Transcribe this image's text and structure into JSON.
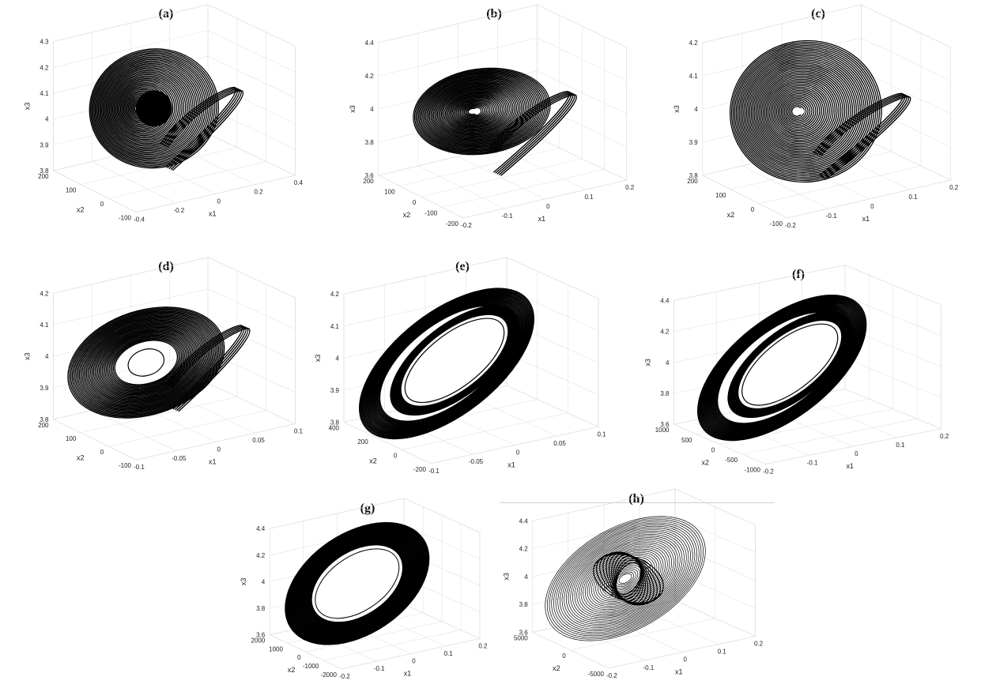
{
  "chart_data": [
    {
      "label": "(a)",
      "type": "line",
      "style": "dense-spiral-disk",
      "x1": {
        "ticks": [
          "-0.4",
          "-0.2",
          "0",
          "0.2",
          "0.4"
        ]
      },
      "x2": {
        "ticks": [
          "-100",
          "0",
          "100",
          "200"
        ]
      },
      "x3": {
        "ticks": [
          "3.8",
          "3.9",
          "4",
          "4.1",
          "4.2",
          "4.3"
        ]
      },
      "xlabel": "x1",
      "ylabel": "x2",
      "zlabel": "x3"
    },
    {
      "label": "(b)",
      "type": "line",
      "style": "dense-spiral-disk",
      "x1": {
        "ticks": [
          "-0.2",
          "-0.1",
          "0",
          "0.1",
          "0.2"
        ]
      },
      "x2": {
        "ticks": [
          "-200",
          "-100",
          "0",
          "100",
          "200"
        ]
      },
      "x3": {
        "ticks": [
          "3.6",
          "3.8",
          "4",
          "4.2",
          "4.4"
        ]
      },
      "xlabel": "x1",
      "ylabel": "x2",
      "zlabel": "x3"
    },
    {
      "label": "(c)",
      "type": "line",
      "style": "dense-spiral-disk",
      "x1": {
        "ticks": [
          "-0.2",
          "-0.1",
          "0",
          "0.1",
          "0.2"
        ]
      },
      "x2": {
        "ticks": [
          "-100",
          "0",
          "100",
          "200"
        ]
      },
      "x3": {
        "ticks": [
          "3.8",
          "3.9",
          "4",
          "4.1",
          "4.2"
        ]
      },
      "xlabel": "x1",
      "ylabel": "x2",
      "zlabel": "x3"
    },
    {
      "label": "(d)",
      "type": "line",
      "style": "annulus",
      "x1": {
        "ticks": [
          "-0.1",
          "-0.05",
          "0",
          "0.05",
          "0.1"
        ]
      },
      "x2": {
        "ticks": [
          "-100",
          "0",
          "100",
          "200"
        ]
      },
      "x3": {
        "ticks": [
          "3.8",
          "3.9",
          "4",
          "4.1",
          "4.2"
        ]
      },
      "xlabel": "x1",
      "ylabel": "x2",
      "zlabel": "x3"
    },
    {
      "label": "(e)",
      "type": "line",
      "style": "double-ring",
      "x1": {
        "ticks": [
          "-0.1",
          "-0.05",
          "0",
          "0.05",
          "0.1"
        ]
      },
      "x2": {
        "ticks": [
          "-200",
          "0",
          "200",
          "400"
        ]
      },
      "x3": {
        "ticks": [
          "3.8",
          "3.9",
          "4",
          "4.1",
          "4.2"
        ]
      },
      "xlabel": "x1",
      "ylabel": "x2",
      "zlabel": "x3"
    },
    {
      "label": "(f)",
      "type": "line",
      "style": "double-ring",
      "x1": {
        "ticks": [
          "-0.2",
          "-0.1",
          "0",
          "0.1",
          "0.2"
        ]
      },
      "x2": {
        "ticks": [
          "-1000",
          "-500",
          "0",
          "500",
          "1000"
        ]
      },
      "x3": {
        "ticks": [
          "3.6",
          "3.8",
          "4",
          "4.2",
          "4.4"
        ]
      },
      "xlabel": "x1",
      "ylabel": "x2",
      "zlabel": "x3"
    },
    {
      "label": "(g)",
      "type": "line",
      "style": "thick-ring",
      "x1": {
        "ticks": [
          "-0.2",
          "-0.1",
          "0",
          "0.1",
          "0.2"
        ]
      },
      "x2": {
        "ticks": [
          "-2000",
          "-1000",
          "0",
          "1000",
          "2000"
        ]
      },
      "x3": {
        "ticks": [
          "3.6",
          "3.8",
          "4",
          "4.2",
          "4.4"
        ]
      },
      "xlabel": "x1",
      "ylabel": "x2",
      "zlabel": "x3"
    },
    {
      "label": "(h)",
      "type": "line",
      "style": "sparse-disk",
      "x1": {
        "ticks": [
          "-0.2",
          "-0.1",
          "0",
          "0.1",
          "0.2"
        ]
      },
      "x2": {
        "ticks": [
          "-5000",
          "0",
          "5000"
        ]
      },
      "x3": {
        "ticks": [
          "3.6",
          "3.8",
          "4",
          "4.2",
          "4.4"
        ]
      },
      "xlabel": "x1",
      "ylabel": "x2",
      "zlabel": "x3"
    }
  ]
}
